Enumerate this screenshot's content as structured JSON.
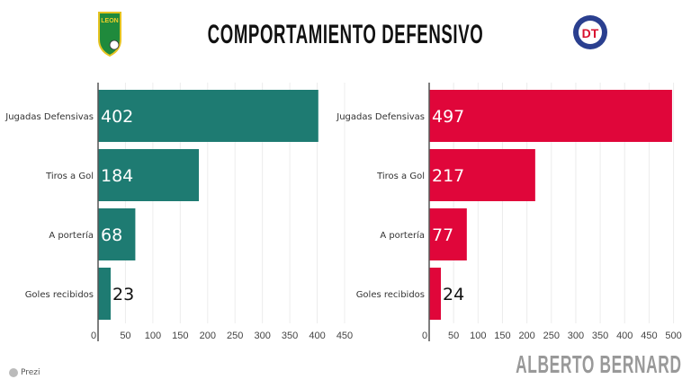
{
  "title": "COMPORTAMIENTO DEFENSIVO",
  "author": "ALBERTO BERNARD",
  "footer": "Prezi",
  "logos": {
    "left": "LEON",
    "right": "Toluca"
  },
  "chart_data": [
    {
      "type": "bar",
      "orientation": "horizontal",
      "team": "LEON",
      "color": "#1e7b72",
      "categories": [
        "Jugadas Defensivas",
        "Tiros a Gol",
        "A portería",
        "Goles recibidos"
      ],
      "values": [
        402,
        184,
        68,
        23
      ],
      "xlim": [
        0,
        450
      ],
      "ticks": [
        0,
        50,
        100,
        150,
        200,
        250,
        300,
        350,
        400,
        450
      ],
      "grid": true
    },
    {
      "type": "bar",
      "orientation": "horizontal",
      "team": "Toluca",
      "color": "#e0063a",
      "categories": [
        "Jugadas Defensivas",
        "Tiros a Gol",
        "A portería",
        "Goles recibidos"
      ],
      "values": [
        497,
        217,
        77,
        24
      ],
      "xlim": [
        0,
        510
      ],
      "ticks": [
        0,
        50,
        100,
        150,
        200,
        250,
        300,
        350,
        400,
        450,
        500
      ],
      "grid": true
    }
  ]
}
